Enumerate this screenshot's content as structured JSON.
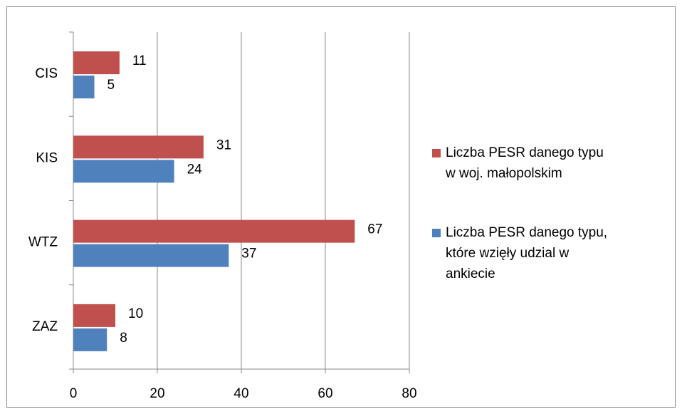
{
  "chart_data": {
    "type": "bar",
    "orientation": "horizontal",
    "categories": [
      "CIS",
      "KIS",
      "WTZ",
      "ZAZ"
    ],
    "series": [
      {
        "name": "Liczba PESR danego typu w woj. małopolskim",
        "color": "#c0504d",
        "values": [
          11,
          31,
          67,
          10
        ]
      },
      {
        "name": "Liczba PESR danego typu, które wzięły udzial w ankiecie",
        "color": "#4f81bd",
        "values": [
          5,
          24,
          37,
          8
        ]
      }
    ],
    "xlim": [
      0,
      80
    ],
    "xticks": [
      0,
      20,
      40,
      60,
      80
    ],
    "grid": true,
    "legend": "right"
  }
}
